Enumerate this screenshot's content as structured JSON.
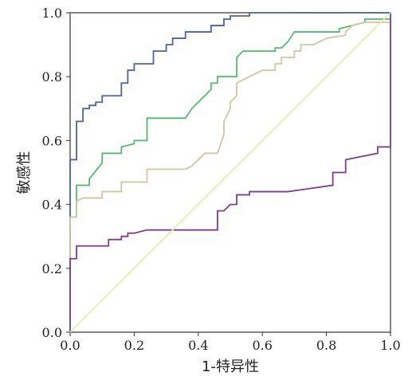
{
  "chart_data": {
    "type": "line",
    "xlabel": "1-特异性",
    "ylabel": "敏感性",
    "xlim": [
      0,
      1
    ],
    "ylim": [
      0,
      1
    ],
    "xticks": [
      "0.0",
      "0.2",
      "0.4",
      "0.6",
      "0.8",
      "1.0"
    ],
    "yticks": [
      "0.0",
      "0.2",
      "0.4",
      "0.6",
      "0.8",
      "1.0"
    ],
    "grid": false,
    "series": [
      {
        "color": "#4a63a8",
        "points": [
          [
            0,
            0
          ],
          [
            0,
            0.54
          ],
          [
            0.02,
            0.54
          ],
          [
            0.02,
            0.66
          ],
          [
            0.04,
            0.66
          ],
          [
            0.04,
            0.7
          ],
          [
            0.06,
            0.7
          ],
          [
            0.06,
            0.71
          ],
          [
            0.08,
            0.71
          ],
          [
            0.08,
            0.72
          ],
          [
            0.1,
            0.72
          ],
          [
            0.1,
            0.74
          ],
          [
            0.16,
            0.74
          ],
          [
            0.16,
            0.78
          ],
          [
            0.18,
            0.78
          ],
          [
            0.18,
            0.8
          ],
          [
            0.18,
            0.82
          ],
          [
            0.2,
            0.82
          ],
          [
            0.2,
            0.84
          ],
          [
            0.26,
            0.84
          ],
          [
            0.26,
            0.88
          ],
          [
            0.3,
            0.88
          ],
          [
            0.3,
            0.9
          ],
          [
            0.32,
            0.9
          ],
          [
            0.32,
            0.92
          ],
          [
            0.36,
            0.92
          ],
          [
            0.36,
            0.94
          ],
          [
            0.44,
            0.94
          ],
          [
            0.44,
            0.96
          ],
          [
            0.48,
            0.96
          ],
          [
            0.48,
            0.98
          ],
          [
            0.5,
            0.98
          ],
          [
            0.5,
            0.99
          ],
          [
            0.56,
            0.99
          ],
          [
            0.56,
            1.0
          ],
          [
            1.0,
            1.0
          ]
        ]
      },
      {
        "color": "#56b870",
        "points": [
          [
            0,
            0
          ],
          [
            0,
            0.36
          ],
          [
            0.02,
            0.36
          ],
          [
            0.02,
            0.46
          ],
          [
            0.06,
            0.46
          ],
          [
            0.06,
            0.48
          ],
          [
            0.1,
            0.53
          ],
          [
            0.1,
            0.56
          ],
          [
            0.16,
            0.56
          ],
          [
            0.16,
            0.58
          ],
          [
            0.2,
            0.59
          ],
          [
            0.2,
            0.6
          ],
          [
            0.24,
            0.6
          ],
          [
            0.24,
            0.67
          ],
          [
            0.36,
            0.67
          ],
          [
            0.38,
            0.7
          ],
          [
            0.4,
            0.72
          ],
          [
            0.44,
            0.76
          ],
          [
            0.44,
            0.78
          ],
          [
            0.46,
            0.78
          ],
          [
            0.46,
            0.8
          ],
          [
            0.52,
            0.8
          ],
          [
            0.52,
            0.86
          ],
          [
            0.54,
            0.88
          ],
          [
            0.64,
            0.88
          ],
          [
            0.64,
            0.89
          ],
          [
            0.66,
            0.89
          ],
          [
            0.68,
            0.91
          ],
          [
            0.7,
            0.94
          ],
          [
            0.84,
            0.94
          ],
          [
            0.84,
            0.95
          ],
          [
            0.88,
            0.96
          ],
          [
            0.92,
            0.97
          ],
          [
            0.92,
            0.98
          ],
          [
            1.0,
            0.98
          ]
        ]
      },
      {
        "color": "#cfc6a2",
        "points": [
          [
            0,
            0
          ],
          [
            0,
            0.36
          ],
          [
            0.02,
            0.36
          ],
          [
            0.02,
            0.41
          ],
          [
            0.04,
            0.42
          ],
          [
            0.1,
            0.42
          ],
          [
            0.1,
            0.44
          ],
          [
            0.16,
            0.44
          ],
          [
            0.16,
            0.47
          ],
          [
            0.24,
            0.47
          ],
          [
            0.24,
            0.51
          ],
          [
            0.36,
            0.51
          ],
          [
            0.38,
            0.52
          ],
          [
            0.42,
            0.56
          ],
          [
            0.44,
            0.56
          ],
          [
            0.46,
            0.56
          ],
          [
            0.48,
            0.62
          ],
          [
            0.48,
            0.66
          ],
          [
            0.5,
            0.7
          ],
          [
            0.5,
            0.72
          ],
          [
            0.52,
            0.74
          ],
          [
            0.52,
            0.78
          ],
          [
            0.56,
            0.8
          ],
          [
            0.6,
            0.82
          ],
          [
            0.62,
            0.82
          ],
          [
            0.64,
            0.82
          ],
          [
            0.64,
            0.84
          ],
          [
            0.66,
            0.84
          ],
          [
            0.66,
            0.86
          ],
          [
            0.7,
            0.86
          ],
          [
            0.7,
            0.88
          ],
          [
            0.72,
            0.88
          ],
          [
            0.72,
            0.9
          ],
          [
            0.76,
            0.9
          ],
          [
            0.8,
            0.92
          ],
          [
            0.86,
            0.93
          ],
          [
            0.86,
            0.94
          ],
          [
            0.88,
            0.96
          ],
          [
            0.92,
            0.97
          ],
          [
            0.96,
            0.97
          ],
          [
            1.0,
            0.97
          ]
        ]
      },
      {
        "color": "#7b3f8c",
        "points": [
          [
            0,
            0
          ],
          [
            0,
            0.23
          ],
          [
            0.02,
            0.23
          ],
          [
            0.02,
            0.27
          ],
          [
            0.12,
            0.27
          ],
          [
            0.12,
            0.29
          ],
          [
            0.16,
            0.29
          ],
          [
            0.16,
            0.3
          ],
          [
            0.18,
            0.3
          ],
          [
            0.18,
            0.31
          ],
          [
            0.2,
            0.31
          ],
          [
            0.24,
            0.32
          ],
          [
            0.46,
            0.32
          ],
          [
            0.46,
            0.38
          ],
          [
            0.48,
            0.38
          ],
          [
            0.5,
            0.4
          ],
          [
            0.52,
            0.4
          ],
          [
            0.52,
            0.43
          ],
          [
            0.56,
            0.43
          ],
          [
            0.56,
            0.44
          ],
          [
            0.68,
            0.44
          ],
          [
            0.82,
            0.46
          ],
          [
            0.82,
            0.5
          ],
          [
            0.86,
            0.5
          ],
          [
            0.86,
            0.54
          ],
          [
            0.96,
            0.56
          ],
          [
            0.96,
            0.58
          ],
          [
            1.0,
            0.58
          ],
          [
            1.0,
            1.0
          ]
        ]
      },
      {
        "color": "#e3edaa",
        "points": [
          [
            0,
            0
          ],
          [
            1,
            1
          ]
        ]
      }
    ]
  }
}
